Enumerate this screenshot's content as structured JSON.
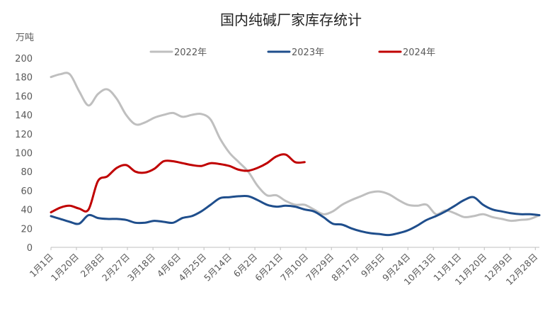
{
  "chart_data": {
    "type": "line",
    "title": "国内纯碱厂家库存统计",
    "y_unit": "万吨",
    "ylim": [
      0,
      200
    ],
    "yticks": [
      0,
      20,
      40,
      60,
      80,
      100,
      120,
      140,
      160,
      180,
      200
    ],
    "xlim": [
      0,
      52
    ],
    "x_tick_labels": [
      "1月1日",
      "1月20日",
      "2月8日",
      "2月27日",
      "3月18日",
      "4月6日",
      "4月25日",
      "5月14日",
      "6月2日",
      "6月21日",
      "7月10日",
      "7月29日",
      "8月17日",
      "9月5日",
      "9月24日",
      "10月13日",
      "11月1日",
      "11月20日",
      "12月9日",
      "12月28日"
    ],
    "x_tick_week_index": [
      0,
      2.71,
      5.43,
      8.14,
      10.86,
      13.57,
      16.29,
      19,
      21.71,
      24.43,
      27.14,
      29.86,
      32.57,
      35.29,
      38,
      40.71,
      43.43,
      46.14,
      48.86,
      51.57
    ],
    "grid": false,
    "legend_position": "top-center",
    "series": [
      {
        "name": "2022年",
        "color": "#bfbfbf",
        "x": [
          0,
          1,
          2,
          3,
          4,
          5,
          6,
          7,
          8,
          9,
          10,
          11,
          12,
          13,
          14,
          15,
          16,
          17,
          18,
          19,
          20,
          21,
          22,
          23,
          24,
          25,
          26,
          27,
          28,
          29,
          30,
          31,
          32,
          33,
          34,
          35,
          36,
          37,
          38,
          39,
          40,
          41,
          42,
          43,
          44,
          45,
          46,
          47,
          48,
          49,
          50,
          51,
          52
        ],
        "values": [
          180,
          183,
          183,
          165,
          150,
          162,
          167,
          157,
          140,
          130,
          132,
          137,
          140,
          142,
          138,
          140,
          141,
          135,
          115,
          100,
          90,
          80,
          65,
          55,
          55,
          49,
          45,
          45,
          40,
          35,
          38,
          45,
          50,
          54,
          58,
          59,
          56,
          50,
          45,
          44,
          45,
          35,
          39,
          36,
          32,
          33,
          35,
          32,
          30,
          28,
          29,
          30,
          34
        ]
      },
      {
        "name": "2023年",
        "color": "#1f4e8c",
        "x": [
          0,
          1,
          2,
          3,
          4,
          5,
          6,
          7,
          8,
          9,
          10,
          11,
          12,
          13,
          14,
          15,
          16,
          17,
          18,
          19,
          20,
          21,
          22,
          23,
          24,
          25,
          26,
          27,
          28,
          29,
          30,
          31,
          32,
          33,
          34,
          35,
          36,
          37,
          38,
          39,
          40,
          41,
          42,
          43,
          44,
          45,
          46,
          47,
          48,
          49,
          50,
          51,
          52
        ],
        "values": [
          33,
          30,
          27,
          25,
          34,
          31,
          30,
          30,
          29,
          26,
          26,
          28,
          27,
          26,
          31,
          33,
          38,
          45,
          52,
          53,
          54,
          54,
          50,
          45,
          43,
          44,
          43,
          40,
          38,
          32,
          25,
          24,
          20,
          17,
          15,
          14,
          13,
          15,
          18,
          23,
          29,
          33,
          38,
          44,
          50,
          53,
          45,
          40,
          38,
          36,
          35,
          35,
          34
        ]
      },
      {
        "name": "2024年",
        "color": "#c00000",
        "x": [
          0,
          1,
          2,
          3,
          4,
          5,
          6,
          7,
          8,
          9,
          10,
          11,
          12,
          13,
          14,
          15,
          16,
          17,
          18,
          19,
          20,
          21,
          22,
          23,
          24,
          25,
          26,
          27
        ],
        "values": [
          37,
          42,
          44,
          41,
          40,
          70,
          75,
          84,
          87,
          80,
          79,
          83,
          91,
          91,
          89,
          87,
          86,
          89,
          88,
          86,
          82,
          81,
          84,
          89,
          96,
          98,
          90,
          90
        ]
      }
    ]
  }
}
